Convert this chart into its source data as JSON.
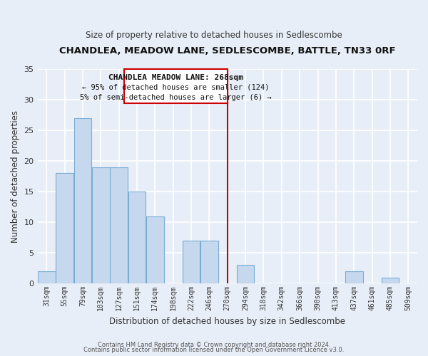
{
  "title": "CHANDLEA, MEADOW LANE, SEDLESCOMBE, BATTLE, TN33 0RF",
  "subtitle": "Size of property relative to detached houses in Sedlescombe",
  "xlabel": "Distribution of detached houses by size in Sedlescombe",
  "ylabel": "Number of detached properties",
  "footer_line1": "Contains HM Land Registry data © Crown copyright and database right 2024.",
  "footer_line2": "Contains public sector information licensed under the Open Government Licence v3.0.",
  "bin_labels": [
    "31sqm",
    "55sqm",
    "79sqm",
    "103sqm",
    "127sqm",
    "151sqm",
    "174sqm",
    "198sqm",
    "222sqm",
    "246sqm",
    "270sqm",
    "294sqm",
    "318sqm",
    "342sqm",
    "366sqm",
    "390sqm",
    "413sqm",
    "437sqm",
    "461sqm",
    "485sqm",
    "509sqm"
  ],
  "bar_values": [
    2,
    18,
    27,
    19,
    19,
    15,
    11,
    0,
    7,
    7,
    0,
    3,
    0,
    0,
    0,
    0,
    0,
    2,
    0,
    1,
    0
  ],
  "bar_color": "#c5d8ee",
  "bar_edge_color": "#7aadd4",
  "property_label": "CHANDLEA MEADOW LANE: 268sqm",
  "annotation_line1": "← 95% of detached houses are smaller (124)",
  "annotation_line2": "5% of semi-detached houses are larger (6) →",
  "annotation_box_color": "#ffffff",
  "annotation_box_edge": "#cc0000",
  "vline_color": "#cc0000",
  "ylim": [
    0,
    35
  ],
  "yticks": [
    0,
    5,
    10,
    15,
    20,
    25,
    30,
    35
  ],
  "background_color": "#e8eef7",
  "grid_color": "#ffffff",
  "title_fontsize": 9.5,
  "subtitle_fontsize": 8.5
}
